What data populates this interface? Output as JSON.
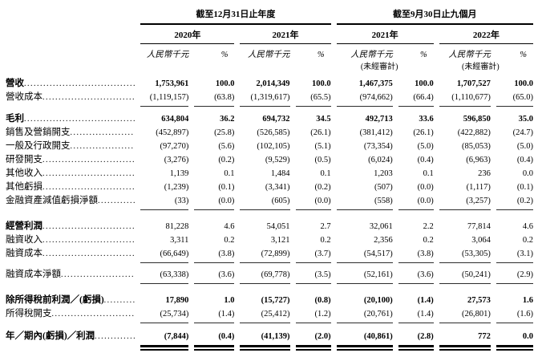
{
  "table": {
    "unit_label": "人民幣千元",
    "pct_label": "%",
    "unaudited_label": "(未經審計)",
    "col_groups": [
      {
        "title": "截至12月31日止年度",
        "years": [
          {
            "label": "2020年",
            "unaudited": false
          },
          {
            "label": "2021年",
            "unaudited": false
          }
        ]
      },
      {
        "title": "截至9月30日止九個月",
        "years": [
          {
            "label": "2021年",
            "unaudited": true
          },
          {
            "label": "2022年",
            "unaudited": true
          }
        ]
      }
    ],
    "rows": [
      {
        "label": "營收",
        "bold_label": true,
        "bold_values": true,
        "gap_before": 0,
        "rule_below": false,
        "values": [
          "1,753,961",
          "100.0",
          "2,014,349",
          "100.0",
          "1,467,375",
          "100.0",
          "1,707,527",
          "100.0"
        ]
      },
      {
        "label": "營收成本",
        "bold_label": false,
        "bold_values": false,
        "gap_before": 0,
        "rule_below": true,
        "values": [
          "(1,119,157)",
          "(63.8)",
          "(1,319,617)",
          "(65.5)",
          "(974,662)",
          "(66.4)",
          "(1,110,677)",
          "(65.0)"
        ]
      },
      {
        "label": "毛利",
        "bold_label": true,
        "bold_values": true,
        "gap_before": 6,
        "rule_below": false,
        "values": [
          "634,804",
          "36.2",
          "694,732",
          "34.5",
          "492,713",
          "33.6",
          "596,850",
          "35.0"
        ]
      },
      {
        "label": "銷售及營銷開支",
        "bold_label": false,
        "bold_values": false,
        "gap_before": 0,
        "rule_below": false,
        "values": [
          "(452,897)",
          "(25.8)",
          "(526,585)",
          "(26.1)",
          "(381,412)",
          "(26.1)",
          "(422,882)",
          "(24.7)"
        ]
      },
      {
        "label": "一般及行政開支",
        "bold_label": false,
        "bold_values": false,
        "gap_before": 0,
        "rule_below": false,
        "values": [
          "(97,270)",
          "(5.6)",
          "(102,105)",
          "(5.1)",
          "(73,354)",
          "(5.0)",
          "(85,053)",
          "(5.0)"
        ]
      },
      {
        "label": "研發開支",
        "bold_label": false,
        "bold_values": false,
        "gap_before": 0,
        "rule_below": false,
        "values": [
          "(3,276)",
          "(0.2)",
          "(9,529)",
          "(0.5)",
          "(6,024)",
          "(0.4)",
          "(6,963)",
          "(0.4)"
        ]
      },
      {
        "label": "其他收入",
        "bold_label": false,
        "bold_values": false,
        "gap_before": 0,
        "rule_below": false,
        "values": [
          "1,139",
          "0.1",
          "1,484",
          "0.1",
          "1,203",
          "0.1",
          "236",
          "0.0"
        ]
      },
      {
        "label": "其他虧損",
        "bold_label": false,
        "bold_values": false,
        "gap_before": 0,
        "rule_below": false,
        "values": [
          "(1,239)",
          "(0.1)",
          "(3,341)",
          "(0.2)",
          "(507)",
          "(0.0)",
          "(1,117)",
          "(0.1)"
        ]
      },
      {
        "label": "金融資產減值虧損淨額",
        "bold_label": false,
        "bold_values": false,
        "gap_before": 0,
        "rule_below": true,
        "values": [
          "(33)",
          "(0.0)",
          "(605)",
          "(0.0)",
          "(558)",
          "(0.0)",
          "(3,257)",
          "(0.2)"
        ]
      },
      {
        "label": "經營利潤",
        "bold_label": true,
        "bold_values": false,
        "gap_before": 11,
        "rule_below": false,
        "values": [
          "81,228",
          "4.6",
          "54,051",
          "2.7",
          "32,061",
          "2.2",
          "77,814",
          "4.6"
        ]
      },
      {
        "label": "融資收入",
        "bold_label": false,
        "bold_values": false,
        "gap_before": 0,
        "rule_below": false,
        "values": [
          "3,311",
          "0.2",
          "3,121",
          "0.2",
          "2,356",
          "0.2",
          "3,064",
          "0.2"
        ]
      },
      {
        "label": "融資成本",
        "bold_label": false,
        "bold_values": false,
        "gap_before": 0,
        "rule_below": true,
        "values": [
          "(66,649)",
          "(3.8)",
          "(72,899)",
          "(3.7)",
          "(54,517)",
          "(3.8)",
          "(53,305)",
          "(3.1)"
        ]
      },
      {
        "label": "融資成本淨額",
        "bold_label": false,
        "bold_values": false,
        "gap_before": 5,
        "rule_below": true,
        "values": [
          "(63,338)",
          "(3.6)",
          "(69,778)",
          "(3.5)",
          "(52,161)",
          "(3.6)",
          "(50,241)",
          "(2.9)"
        ]
      },
      {
        "label": "除所得稅前利潤／(虧損)",
        "bold_label": true,
        "bold_values": true,
        "gap_before": 11,
        "rule_below": false,
        "values": [
          "17,890",
          "1.0",
          "(15,727)",
          "(0.8)",
          "(20,100)",
          "(1.4)",
          "27,573",
          "1.6"
        ]
      },
      {
        "label": "所得稅開支",
        "bold_label": false,
        "bold_values": false,
        "gap_before": 0,
        "rule_below": true,
        "values": [
          "(25,734)",
          "(1.4)",
          "(25,412)",
          "(1.2)",
          "(20,761)",
          "(1.4)",
          "(26,801)",
          "(1.6)"
        ]
      },
      {
        "label": "年／期內(虧損)／利潤",
        "bold_label": true,
        "bold_values": true,
        "gap_before": 7,
        "rule_below": false,
        "double_rule_after": true,
        "values": [
          "(7,844)",
          "(0.4)",
          "(41,139)",
          "(2.0)",
          "(40,861)",
          "(2.8)",
          "772",
          "0.0"
        ]
      }
    ]
  }
}
